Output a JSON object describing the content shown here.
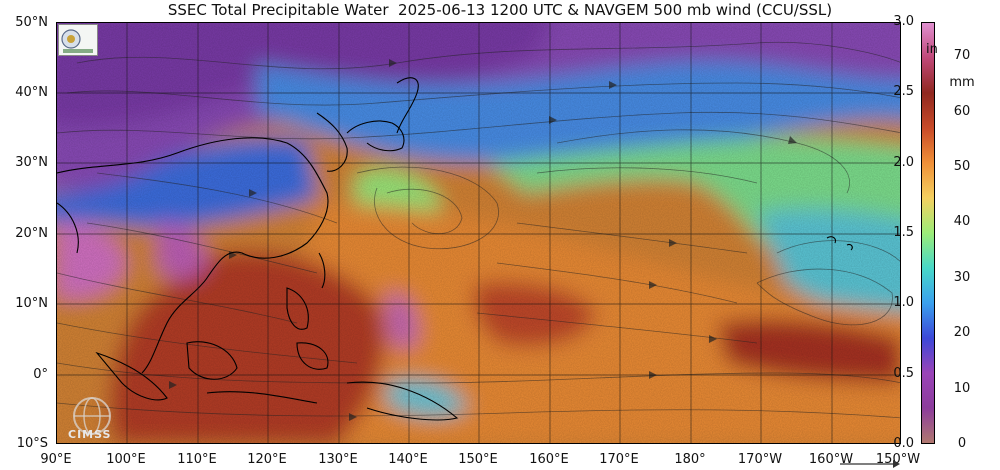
{
  "title": "SSEC Total Precipitable Water  2025-06-13 1200 UTC & NAVGEM 500 mb wind (CCU/SSL)",
  "lat_labels": [
    "50°N",
    "40°N",
    "30°N",
    "20°N",
    "10°N",
    "0°",
    "10°S"
  ],
  "lon_labels": [
    "90°E",
    "100°E",
    "110°E",
    "120°E",
    "130°E",
    "140°E",
    "150°E",
    "160°E",
    "170°E",
    "180°",
    "170°W",
    "160°W",
    "150°W"
  ],
  "colorbar": {
    "inch_unit": "in",
    "mm_unit": "mm",
    "inch_ticks": [
      "3.0",
      "2.5",
      "2.0",
      "1.5",
      "1.0",
      "0.5",
      "0.0"
    ],
    "inch_values": [
      3.0,
      2.5,
      2.0,
      1.5,
      1.0,
      0.5,
      0.0
    ],
    "mm_ticks": [
      "70",
      "60",
      "50",
      "40",
      "30",
      "20",
      "10",
      "0"
    ],
    "mm_values": [
      70,
      60,
      50,
      40,
      30,
      20,
      10,
      0
    ],
    "range_mm": [
      0,
      76.2
    ],
    "colors": [
      "#b07870",
      "#8c3c9c",
      "#9a44b8",
      "#3c48d8",
      "#3aa0ee",
      "#48d8c8",
      "#9cec78",
      "#f4d060",
      "#f09038",
      "#c84a28",
      "#902820",
      "#c04878",
      "#e090d0"
    ]
  },
  "colors": {
    "dry": "#7a3fb0",
    "moist_low": "#3ca8ec",
    "moist_mid": "#a0ec80",
    "wet": "#e88a3a",
    "very_wet": "#a83020",
    "extreme": "#d070c0",
    "land_outline": "#000000"
  },
  "logos": {
    "cimss_text": "CIMSS"
  },
  "map": {
    "region": "Western Pacific",
    "lat_range": [
      -10,
      50
    ],
    "lon_range_east": [
      90,
      210
    ],
    "wind_level": "500 mb"
  }
}
